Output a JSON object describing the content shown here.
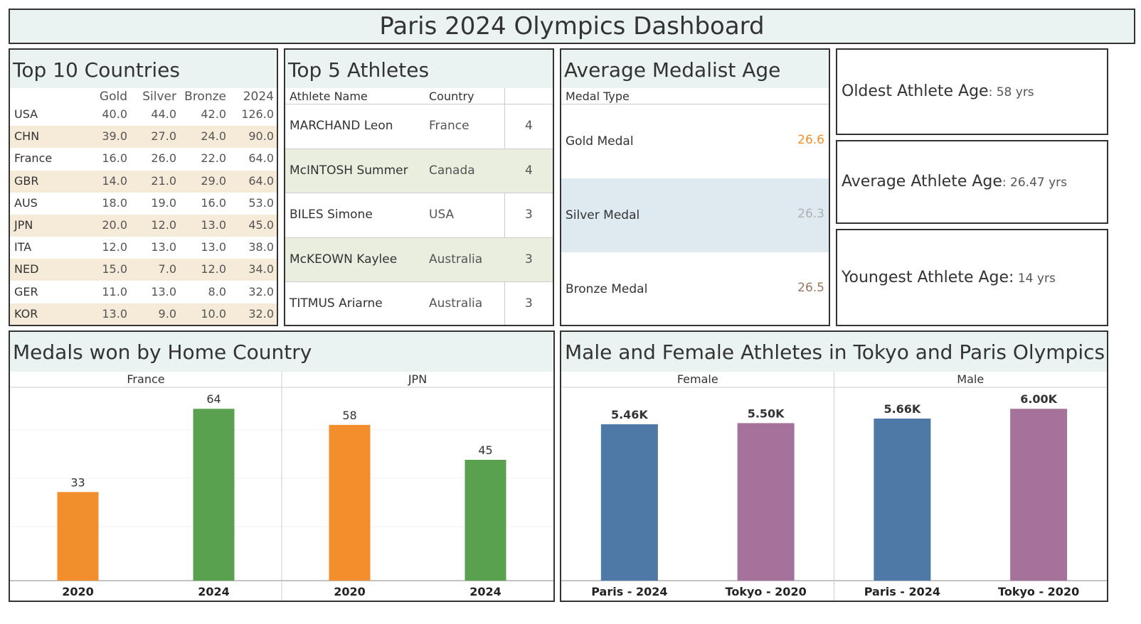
{
  "dashboard": {
    "title": "Paris 2024 Olympics Dashboard"
  },
  "top_countries": {
    "title": "Top 10 Countries",
    "headers": [
      "Gold",
      "Silver",
      "Bronze",
      "2024"
    ],
    "rows": [
      {
        "country": "USA",
        "gold": "40.0",
        "silver": "44.0",
        "bronze": "42.0",
        "total": "126.0"
      },
      {
        "country": "CHN",
        "gold": "39.0",
        "silver": "27.0",
        "bronze": "24.0",
        "total": "90.0"
      },
      {
        "country": "France",
        "gold": "16.0",
        "silver": "26.0",
        "bronze": "22.0",
        "total": "64.0"
      },
      {
        "country": "GBR",
        "gold": "14.0",
        "silver": "21.0",
        "bronze": "29.0",
        "total": "64.0"
      },
      {
        "country": "AUS",
        "gold": "18.0",
        "silver": "19.0",
        "bronze": "16.0",
        "total": "53.0"
      },
      {
        "country": "JPN",
        "gold": "20.0",
        "silver": "12.0",
        "bronze": "13.0",
        "total": "45.0"
      },
      {
        "country": "ITA",
        "gold": "12.0",
        "silver": "13.0",
        "bronze": "13.0",
        "total": "38.0"
      },
      {
        "country": "NED",
        "gold": "15.0",
        "silver": "7.0",
        "bronze": "12.0",
        "total": "34.0"
      },
      {
        "country": "GER",
        "gold": "11.0",
        "silver": "13.0",
        "bronze": "8.0",
        "total": "32.0"
      },
      {
        "country": "KOR",
        "gold": "13.0",
        "silver": "9.0",
        "bronze": "10.0",
        "total": "32.0"
      }
    ]
  },
  "top_athletes": {
    "title": "Top 5 Athletes",
    "headers": {
      "name": "Athlete Name",
      "country": "Country"
    },
    "rows": [
      {
        "name": "MARCHAND Leon",
        "country": "France",
        "medals": "4"
      },
      {
        "name": "McINTOSH Summer",
        "country": "Canada",
        "medals": "4"
      },
      {
        "name": "BILES Simone",
        "country": "USA",
        "medals": "3"
      },
      {
        "name": "McKEOWN Kaylee",
        "country": "Australia",
        "medals": "3"
      },
      {
        "name": "TITMUS Ariarne",
        "country": "Australia",
        "medals": "3"
      }
    ]
  },
  "avg_age": {
    "title": "Average Medalist Age",
    "header": "Medal Type",
    "rows": [
      {
        "label": "Gold Medal",
        "value": "26.6",
        "color": "#f28e2b"
      },
      {
        "label": "Silver Medal",
        "value": "26.3",
        "color": "#b0b0b0"
      },
      {
        "label": "Bronze Medal",
        "value": "26.5",
        "color": "#9c755f"
      }
    ]
  },
  "kpis": {
    "oldest": {
      "label": "Oldest Athlete Age",
      "value": ": 58 yrs"
    },
    "average": {
      "label": "Average Athlete Age",
      "value": ":  26.47 yrs"
    },
    "youngest": {
      "label": "Youngest Athlete Age:",
      "value": " 14 yrs"
    }
  },
  "chart_data": [
    {
      "type": "bar",
      "title": "Medals won by Home Country",
      "panels": [
        {
          "name": "France",
          "categories": [
            "2020",
            "2024"
          ],
          "values": [
            33,
            64
          ],
          "labels": [
            "33",
            "64"
          ]
        },
        {
          "name": "JPN",
          "categories": [
            "2020",
            "2024"
          ],
          "values": [
            58,
            45
          ],
          "labels": [
            "58",
            "45"
          ]
        }
      ],
      "colors": {
        "2020": "#f28e2b",
        "2024": "#59a14f"
      },
      "ylim": [
        0,
        72
      ]
    },
    {
      "type": "bar",
      "title": "Male and Female Athletes in Tokyo and Paris Olympics",
      "panels": [
        {
          "name": "Female",
          "categories": [
            "Paris - 2024",
            "Tokyo - 2020"
          ],
          "values": [
            5460,
            5500
          ],
          "labels": [
            "5.46K",
            "5.50K"
          ]
        },
        {
          "name": "Male",
          "categories": [
            "Paris - 2024",
            "Tokyo - 2020"
          ],
          "values": [
            5660,
            6000
          ],
          "labels": [
            "5.66K",
            "6.00K"
          ]
        }
      ],
      "colors": {
        "Paris - 2024": "#4e79a7",
        "Tokyo - 2020": "#a5729b"
      },
      "ylim": [
        0,
        6750
      ]
    }
  ]
}
